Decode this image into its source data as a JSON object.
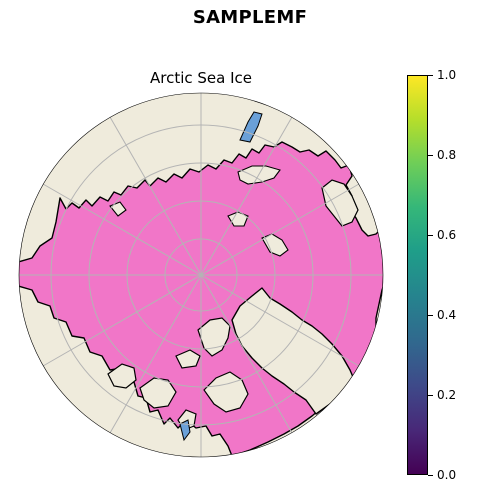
{
  "figure": {
    "suptitle": "SAMPLEMF",
    "map_title": "Arctic Sea Ice"
  },
  "map": {
    "projection": "north-polar-stereographic",
    "colors": {
      "land": "#efebdc",
      "sea_ice": "#f176c8",
      "coastline": "#000000",
      "gridline": "#b4b4b4",
      "ice_edge": "#6aa0d8"
    }
  },
  "colorbar": {
    "colormap": "viridis",
    "range": [
      0.0,
      1.0
    ],
    "ticks": [
      {
        "value": 0.0,
        "label": "0.0"
      },
      {
        "value": 0.2,
        "label": "0.2"
      },
      {
        "value": 0.4,
        "label": "0.4"
      },
      {
        "value": 0.6,
        "label": "0.6"
      },
      {
        "value": 0.8,
        "label": "0.8"
      },
      {
        "value": 1.0,
        "label": "1.0"
      }
    ]
  }
}
